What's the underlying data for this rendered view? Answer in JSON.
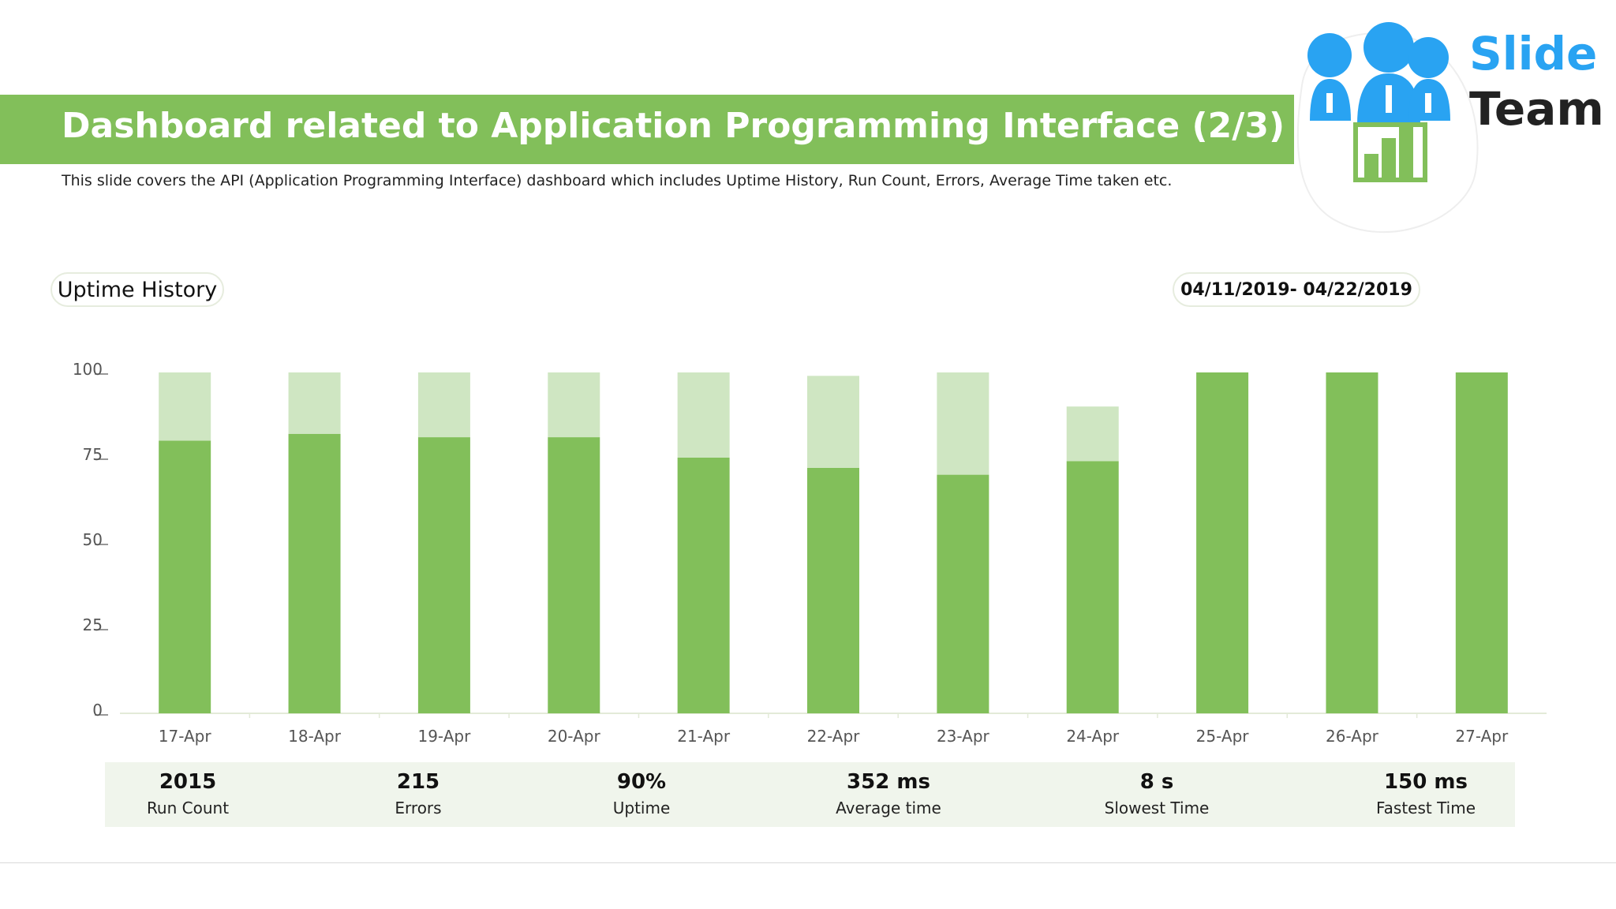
{
  "header": {
    "title": "Dashboard related to Application Programming Interface (2/3)",
    "subtitle": "This slide covers the API (Application Programming Interface) dashboard which includes Uptime History, Run Count, Errors, Average Time taken etc."
  },
  "logo": {
    "line1": "Slide",
    "line2": "Team"
  },
  "labels": {
    "uptime_history": "Uptime History",
    "date_range": "04/11/2019- 04/22/2019"
  },
  "colors": {
    "accent": "#82bf5a",
    "light_green": "#cfe6c2",
    "logo_blue": "#29a3f2"
  },
  "chart_data": {
    "type": "bar",
    "stacked": true,
    "categories": [
      "17-Apr",
      "18-Apr",
      "19-Apr",
      "20-Apr",
      "21-Apr",
      "22-Apr",
      "23-Apr",
      "24-Apr",
      "25-Apr",
      "26-Apr",
      "27-Apr"
    ],
    "series": [
      {
        "values": [
          80,
          82,
          81,
          81,
          75,
          72,
          70,
          74,
          100,
          100,
          100
        ],
        "color": "#82bf5a"
      },
      {
        "values": [
          20,
          18,
          19,
          19,
          25,
          27,
          30,
          16,
          0,
          0,
          0
        ],
        "color": "#cfe6c2"
      }
    ],
    "yticks": [
      "0",
      "25",
      "50",
      "75",
      "100"
    ],
    "ylim": [
      0,
      100
    ],
    "grid": false,
    "legend": "none"
  },
  "kpis": [
    {
      "value": "2015",
      "label": "Run Count"
    },
    {
      "value": "215",
      "label": "Errors"
    },
    {
      "value": "90%",
      "label": "Uptime"
    },
    {
      "value": "352 ms",
      "label": "Average time"
    },
    {
      "value": "8 s",
      "label": "Slowest Time"
    },
    {
      "value": "150 ms",
      "label": "Fastest Time"
    }
  ]
}
